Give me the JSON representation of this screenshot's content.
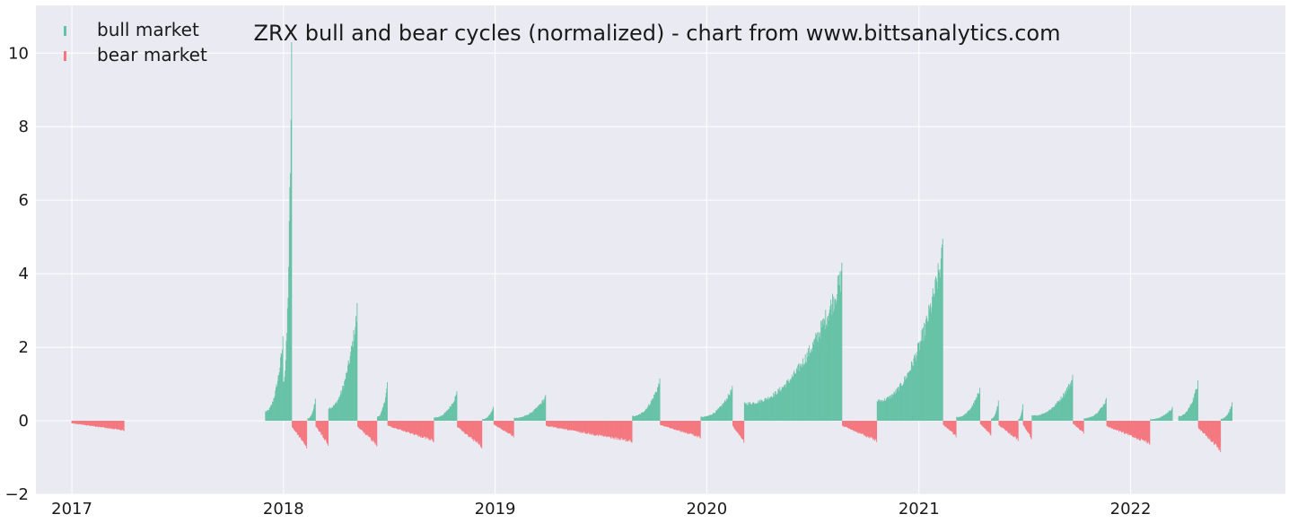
{
  "chart_data": {
    "type": "bar",
    "title": "ZRX bull and bear cycles (normalized)  - chart from www.bittsanalytics.com",
    "xlabel": "",
    "ylabel": "",
    "x_ticks": [
      "2017",
      "2018",
      "2019",
      "2020",
      "2021",
      "2022"
    ],
    "y_ticks": [
      "−2",
      "0",
      "2",
      "4",
      "6",
      "8",
      "10"
    ],
    "xlim": [
      "2016-10-31",
      "2022-09-25"
    ],
    "ylim": [
      -2,
      11.3
    ],
    "grid": true,
    "legend_position": "top-left",
    "colors": {
      "bull": "#66c2a5",
      "bear": "#f4777f",
      "background": "#eaeaf2",
      "grid": "#ffffff"
    },
    "series": [
      {
        "name": "bull market",
        "segments": [
          {
            "start": "2017-12-01",
            "end": "2017-12-31",
            "peak": 2.3
          },
          {
            "start": "2018-01-01",
            "end": "2018-01-15",
            "peak": 10.3
          },
          {
            "start": "2018-02-12",
            "end": "2018-02-25",
            "peak": 0.6
          },
          {
            "start": "2018-03-20",
            "end": "2018-05-08",
            "peak": 3.2
          },
          {
            "start": "2018-06-12",
            "end": "2018-06-29",
            "peak": 1.05
          },
          {
            "start": "2018-09-18",
            "end": "2018-10-27",
            "peak": 0.8
          },
          {
            "start": "2018-12-10",
            "end": "2018-12-29",
            "peak": 0.38
          },
          {
            "start": "2019-02-03",
            "end": "2019-03-29",
            "peak": 0.7
          },
          {
            "start": "2019-08-26",
            "end": "2019-10-12",
            "peak": 1.15
          },
          {
            "start": "2019-12-22",
            "end": "2020-02-14",
            "peak": 0.95
          },
          {
            "start": "2020-03-06",
            "end": "2020-08-21",
            "peak": 4.3
          },
          {
            "start": "2020-10-21",
            "end": "2021-02-11",
            "peak": 4.95
          },
          {
            "start": "2021-03-07",
            "end": "2021-04-16",
            "peak": 0.9
          },
          {
            "start": "2021-05-06",
            "end": "2021-05-18",
            "peak": 0.55
          },
          {
            "start": "2021-06-22",
            "end": "2021-06-29",
            "peak": 0.45
          },
          {
            "start": "2021-07-15",
            "end": "2021-09-23",
            "peak": 1.25
          },
          {
            "start": "2021-10-13",
            "end": "2021-11-20",
            "peak": 0.62
          },
          {
            "start": "2022-02-04",
            "end": "2022-03-14",
            "peak": 0.38
          },
          {
            "start": "2022-03-25",
            "end": "2022-04-27",
            "peak": 1.1
          },
          {
            "start": "2022-06-06",
            "end": "2022-06-25",
            "peak": 0.5
          }
        ]
      },
      {
        "name": "bear market",
        "segments": [
          {
            "start": "2017-01-01",
            "end": "2017-04-01",
            "peak": -0.28
          },
          {
            "start": "2018-01-16",
            "end": "2018-02-10",
            "peak": -0.75
          },
          {
            "start": "2018-02-26",
            "end": "2018-03-19",
            "peak": -0.68
          },
          {
            "start": "2018-05-09",
            "end": "2018-06-11",
            "peak": -0.7
          },
          {
            "start": "2018-06-30",
            "end": "2018-09-17",
            "peak": -0.58
          },
          {
            "start": "2018-10-28",
            "end": "2018-12-09",
            "peak": -0.75
          },
          {
            "start": "2018-12-30",
            "end": "2019-02-02",
            "peak": -0.45
          },
          {
            "start": "2019-03-30",
            "end": "2019-08-25",
            "peak": -0.6
          },
          {
            "start": "2019-10-13",
            "end": "2019-12-21",
            "peak": -0.48
          },
          {
            "start": "2020-02-15",
            "end": "2020-03-05",
            "peak": -0.6
          },
          {
            "start": "2020-08-22",
            "end": "2020-10-20",
            "peak": -0.58
          },
          {
            "start": "2021-02-12",
            "end": "2021-03-06",
            "peak": -0.45
          },
          {
            "start": "2021-04-17",
            "end": "2021-05-05",
            "peak": -0.4
          },
          {
            "start": "2021-05-19",
            "end": "2021-06-21",
            "peak": -0.55
          },
          {
            "start": "2021-06-30",
            "end": "2021-07-14",
            "peak": -0.5
          },
          {
            "start": "2021-09-24",
            "end": "2021-10-12",
            "peak": -0.35
          },
          {
            "start": "2021-11-21",
            "end": "2022-02-03",
            "peak": -0.65
          },
          {
            "start": "2022-04-28",
            "end": "2022-06-05",
            "peak": -0.85
          }
        ]
      }
    ]
  }
}
